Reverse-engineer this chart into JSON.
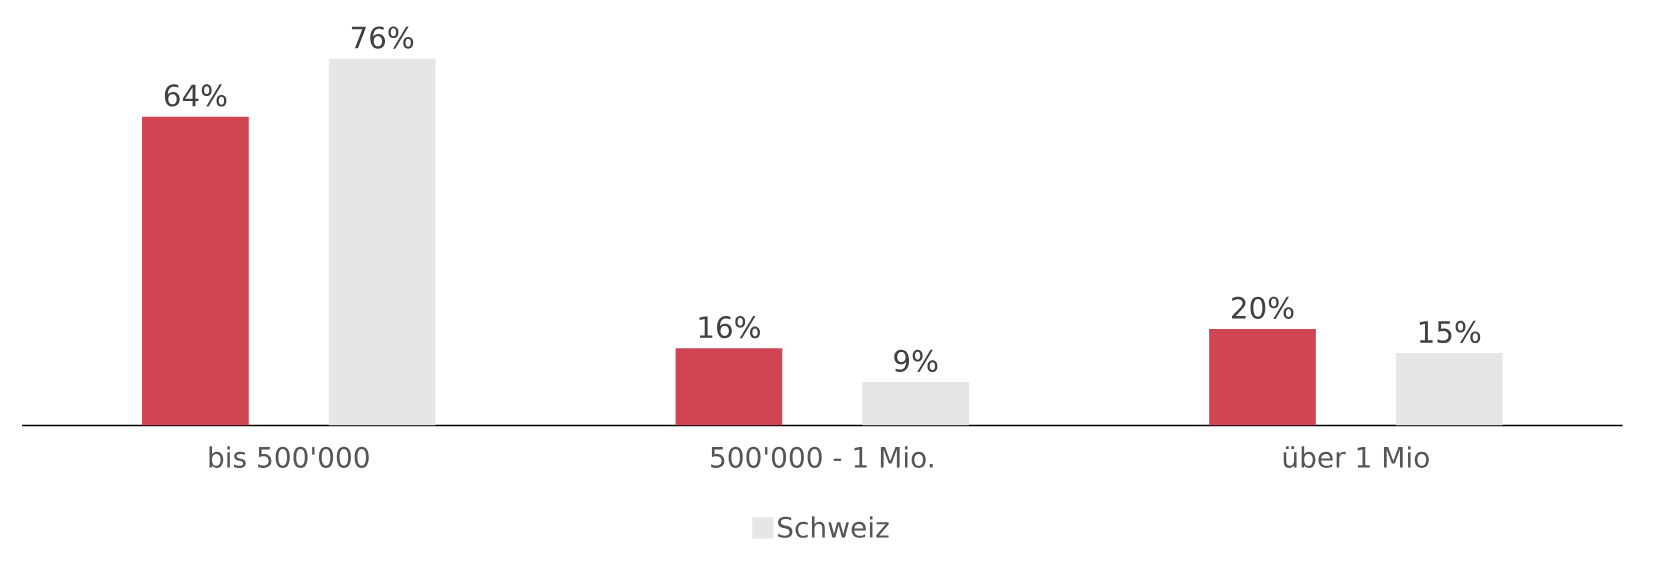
{
  "chart_data": {
    "type": "bar",
    "categories": [
      "bis 500'000",
      "500'000 - 1 Mio.",
      "über 1 Mio"
    ],
    "series": [
      {
        "color": "#d04553",
        "values": [
          64,
          16,
          20
        ],
        "value_labels": [
          "64%",
          "16%",
          "20%"
        ]
      },
      {
        "name": "Schweiz",
        "color": "#e6e6e6",
        "values": [
          76,
          9,
          15
        ],
        "value_labels": [
          "76%",
          "9%",
          "15%"
        ]
      }
    ],
    "legend": "bottom",
    "grid": false
  }
}
